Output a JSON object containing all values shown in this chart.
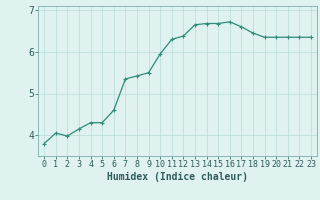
{
  "x": [
    0,
    1,
    2,
    3,
    4,
    5,
    6,
    7,
    8,
    9,
    10,
    11,
    12,
    13,
    14,
    15,
    16,
    17,
    18,
    19,
    20,
    21,
    22,
    23
  ],
  "y": [
    3.8,
    4.05,
    3.98,
    4.15,
    4.3,
    4.3,
    4.6,
    5.35,
    5.42,
    5.5,
    5.95,
    6.3,
    6.38,
    6.65,
    6.68,
    6.68,
    6.72,
    6.6,
    6.45,
    6.35,
    6.35,
    6.35,
    6.35,
    6.35
  ],
  "xlabel": "Humidex (Indice chaleur)",
  "ylim": [
    3.5,
    7.1
  ],
  "xlim": [
    -0.5,
    23.5
  ],
  "yticks": [
    4,
    5,
    6,
    7
  ],
  "xticks": [
    0,
    1,
    2,
    3,
    4,
    5,
    6,
    7,
    8,
    9,
    10,
    11,
    12,
    13,
    14,
    15,
    16,
    17,
    18,
    19,
    20,
    21,
    22,
    23
  ],
  "line_color": "#2e8b7a",
  "marker": "+",
  "marker_size": 3,
  "bg_color": "#dff2f0",
  "grid_color": "#b8dbd8",
  "tick_label_color": "#2e5c5a",
  "xlabel_color": "#2e5c5a",
  "xlabel_fontsize": 7,
  "tick_fontsize": 6,
  "ytick_fontsize": 7,
  "linewidth": 0.9
}
